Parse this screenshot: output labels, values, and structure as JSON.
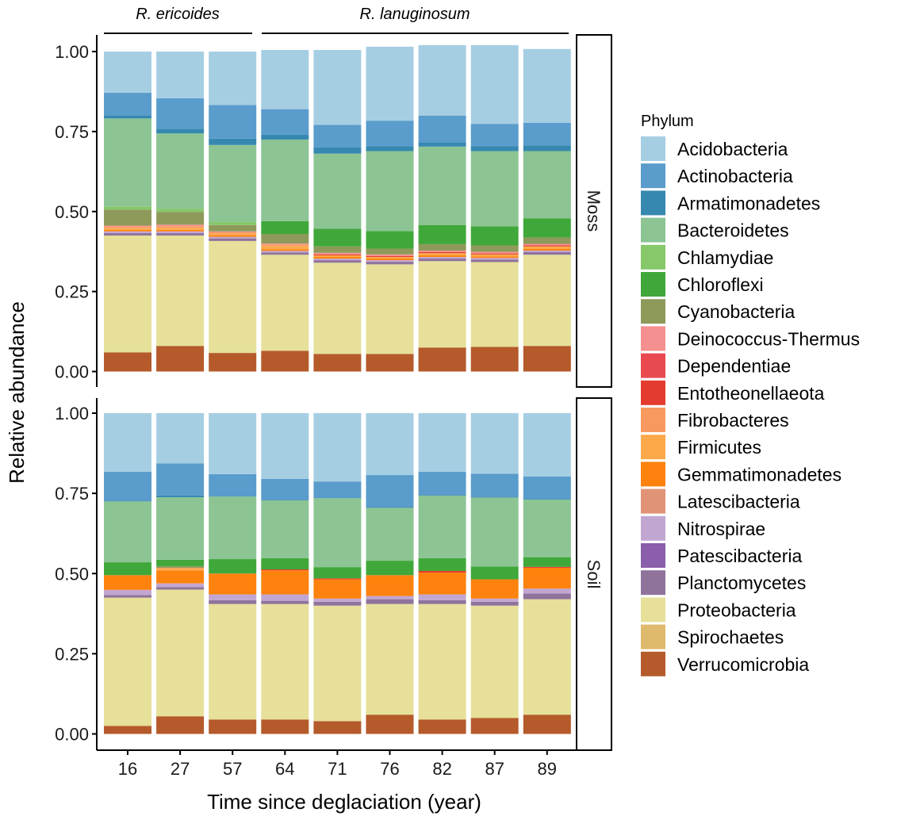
{
  "chart_data": {
    "type": "bar",
    "stacked": true,
    "xlabel": "Time since deglaciation (year)",
    "ylabel": "Relative abundance",
    "ylim": [
      0,
      1
    ],
    "yticks": [
      "0.00",
      "0.25",
      "0.50",
      "0.75",
      "1.00"
    ],
    "categories": [
      "16",
      "27",
      "57",
      "64",
      "71",
      "76",
      "82",
      "87",
      "89"
    ],
    "groups": [
      {
        "label": "R. ericoides",
        "categories": [
          "16",
          "27",
          "57"
        ]
      },
      {
        "label": "R. lanuginosum",
        "categories": [
          "64",
          "71",
          "76",
          "82",
          "87",
          "89"
        ]
      }
    ],
    "legend": {
      "title": "Phylum",
      "position": "right"
    },
    "series_colors": {
      "Acidobacteria": "#a6cee3",
      "Actinobacteria": "#5a9ccb",
      "Armatimonadetes": "#3688b0",
      "Bacteroidetes": "#8cc494",
      "Chlamydiae": "#86c86a",
      "Chloroflexi": "#40a83a",
      "Cyanobacteria": "#8e9a5a",
      "Deinococcus-Thermus": "#f4908f",
      "Dependentiae": "#e84a50",
      "Entotheonellaeota": "#e33b2e",
      "Fibrobacteres": "#f89a60",
      "Firmicutes": "#fca94a",
      "Gemmatimonadetes": "#fd820e",
      "Latescibacteria": "#e19376",
      "Nitrospirae": "#c2a6d2",
      "Patescibacteria": "#8a5eab",
      "Planctomycetes": "#8f739b",
      "Proteobacteria": "#e6e09a",
      "Spirochaetes": "#dfb96c",
      "Verrucomicrobia": "#b55a2a"
    },
    "panels": [
      {
        "name": "Moss",
        "series": [
          {
            "name": "Verrucomicrobia",
            "values": [
              0.06,
              0.08,
              0.058,
              0.065,
              0.055,
              0.055,
              0.075,
              0.077,
              0.08
            ]
          },
          {
            "name": "Spirochaetes",
            "values": [
              0,
              0,
              0,
              0,
              0,
              0,
              0,
              0,
              0
            ]
          },
          {
            "name": "Proteobacteria",
            "values": [
              0.365,
              0.345,
              0.35,
              0.3,
              0.285,
              0.28,
              0.27,
              0.265,
              0.285
            ]
          },
          {
            "name": "Planctomycetes",
            "values": [
              0.008,
              0.008,
              0.008,
              0.007,
              0.008,
              0.008,
              0.008,
              0.008,
              0.008
            ]
          },
          {
            "name": "Patescibacteria",
            "values": [
              0,
              0,
              0,
              0,
              0,
              0,
              0,
              0,
              0
            ]
          },
          {
            "name": "Nitrospirae",
            "values": [
              0.005,
              0.005,
              0.005,
              0.005,
              0.005,
              0.005,
              0.005,
              0.005,
              0.005
            ]
          },
          {
            "name": "Latescibacteria",
            "values": [
              0,
              0,
              0,
              0,
              0,
              0,
              0,
              0,
              0
            ]
          },
          {
            "name": "Gemmatimonadetes",
            "values": [
              0.005,
              0.005,
              0.005,
              0.005,
              0.005,
              0.005,
              0.005,
              0.005,
              0.005
            ]
          },
          {
            "name": "Firmicutes",
            "values": [
              0.005,
              0.006,
              0.005,
              0.01,
              0.005,
              0.005,
              0.007,
              0.006,
              0.008
            ]
          },
          {
            "name": "Fibrobacteres",
            "values": [
              0.005,
              0.005,
              0.004,
              0.005,
              0,
              0,
              0,
              0,
              0
            ]
          },
          {
            "name": "Entotheonellaeota",
            "values": [
              0,
              0,
              0,
              0,
              0.003,
              0.003,
              0.003,
              0.003,
              0.003
            ]
          },
          {
            "name": "Dependentiae",
            "values": [
              0,
              0,
              0,
              0,
              0,
              0,
              0,
              0,
              0
            ]
          },
          {
            "name": "Deinococcus-Thermus",
            "values": [
              0.003,
              0.005,
              0.003,
              0.003,
              0.005,
              0.005,
              0.005,
              0.005,
              0.005
            ]
          },
          {
            "name": "Cyanobacteria",
            "values": [
              0.05,
              0.04,
              0.02,
              0.03,
              0.02,
              0.018,
              0.02,
              0.02,
              0.02
            ]
          },
          {
            "name": "Chloroflexi",
            "values": [
              0,
              0,
              0,
              0.04,
              0.055,
              0.055,
              0.06,
              0.06,
              0.06
            ]
          },
          {
            "name": "Chlamydiae",
            "values": [
              0.01,
              0.01,
              0.01,
              0,
              0,
              0,
              0,
              0,
              0
            ]
          },
          {
            "name": "Bacteroidetes",
            "values": [
              0.275,
              0.235,
              0.24,
              0.255,
              0.235,
              0.25,
              0.245,
              0.235,
              0.21
            ]
          },
          {
            "name": "Armatimonadetes",
            "values": [
              0.01,
              0.015,
              0.02,
              0.015,
              0.02,
              0.015,
              0.012,
              0.015,
              0.018
            ]
          },
          {
            "name": "Actinobacteria",
            "values": [
              0.07,
              0.095,
              0.105,
              0.08,
              0.07,
              0.08,
              0.085,
              0.07,
              0.07
            ]
          },
          {
            "name": "Acidobacteria",
            "values": [
              0.129,
              0.146,
              0.167,
              0.185,
              0.234,
              0.231,
              0.22,
              0.246,
              0.231
            ]
          }
        ]
      },
      {
        "name": "Soil",
        "series": [
          {
            "name": "Verrucomicrobia",
            "values": [
              0.025,
              0.055,
              0.045,
              0.045,
              0.04,
              0.06,
              0.045,
              0.05,
              0.06
            ]
          },
          {
            "name": "Spirochaetes",
            "values": [
              0,
              0,
              0,
              0,
              0,
              0,
              0,
              0,
              0
            ]
          },
          {
            "name": "Proteobacteria",
            "values": [
              0.4,
              0.395,
              0.36,
              0.36,
              0.36,
              0.345,
              0.36,
              0.35,
              0.36
            ]
          },
          {
            "name": "Planctomycetes",
            "values": [
              0.008,
              0.008,
              0.012,
              0.01,
              0.012,
              0.015,
              0.012,
              0.012,
              0.018
            ]
          },
          {
            "name": "Patescibacteria",
            "values": [
              0,
              0,
              0,
              0,
              0,
              0,
              0,
              0,
              0
            ]
          },
          {
            "name": "Nitrospirae",
            "values": [
              0.015,
              0.01,
              0.018,
              0.02,
              0.01,
              0.01,
              0.018,
              0.01,
              0.015
            ]
          },
          {
            "name": "Latescibacteria",
            "values": [
              0.002,
              0.002,
              0,
              0,
              0,
              0,
              0,
              0,
              0
            ]
          },
          {
            "name": "Gemmatimonadetes",
            "values": [
              0.045,
              0.04,
              0.065,
              0.075,
              0.06,
              0.065,
              0.068,
              0.06,
              0.065
            ]
          },
          {
            "name": "Firmicutes",
            "values": [
              0,
              0.005,
              0,
              0,
              0,
              0,
              0,
              0,
              0
            ]
          },
          {
            "name": "Fibrobacteres",
            "values": [
              0,
              0.003,
              0,
              0,
              0,
              0,
              0,
              0,
              0
            ]
          },
          {
            "name": "Entotheonellaeota",
            "values": [
              0,
              0,
              0,
              0.003,
              0.003,
              0,
              0.005,
              0,
              0.003
            ]
          },
          {
            "name": "Dependentiae",
            "values": [
              0,
              0,
              0,
              0,
              0,
              0,
              0,
              0,
              0
            ]
          },
          {
            "name": "Deinococcus-Thermus",
            "values": [
              0,
              0,
              0,
              0,
              0,
              0,
              0,
              0,
              0
            ]
          },
          {
            "name": "Cyanobacteria",
            "values": [
              0,
              0.005,
              0,
              0,
              0,
              0,
              0,
              0,
              0
            ]
          },
          {
            "name": "Chloroflexi",
            "values": [
              0.04,
              0.02,
              0.045,
              0.035,
              0.035,
              0.045,
              0.04,
              0.04,
              0.03
            ]
          },
          {
            "name": "Chlamydiae",
            "values": [
              0,
              0,
              0,
              0,
              0,
              0,
              0,
              0,
              0
            ]
          },
          {
            "name": "Bacteroidetes",
            "values": [
              0.19,
              0.195,
              0.195,
              0.18,
              0.215,
              0.165,
              0.195,
              0.215,
              0.18
            ]
          },
          {
            "name": "Armatimonadetes",
            "values": [
              0.002,
              0.005,
              0.002,
              0.002,
              0.002,
              0.002,
              0.002,
              0.002,
              0.002
            ]
          },
          {
            "name": "Actinobacteria",
            "values": [
              0.09,
              0.1,
              0.068,
              0.065,
              0.05,
              0.1,
              0.072,
              0.072,
              0.07
            ]
          },
          {
            "name": "Acidobacteria",
            "values": [
              0.183,
              0.157,
              0.19,
              0.205,
              0.213,
              0.193,
              0.183,
              0.189,
              0.197
            ]
          }
        ]
      }
    ]
  }
}
